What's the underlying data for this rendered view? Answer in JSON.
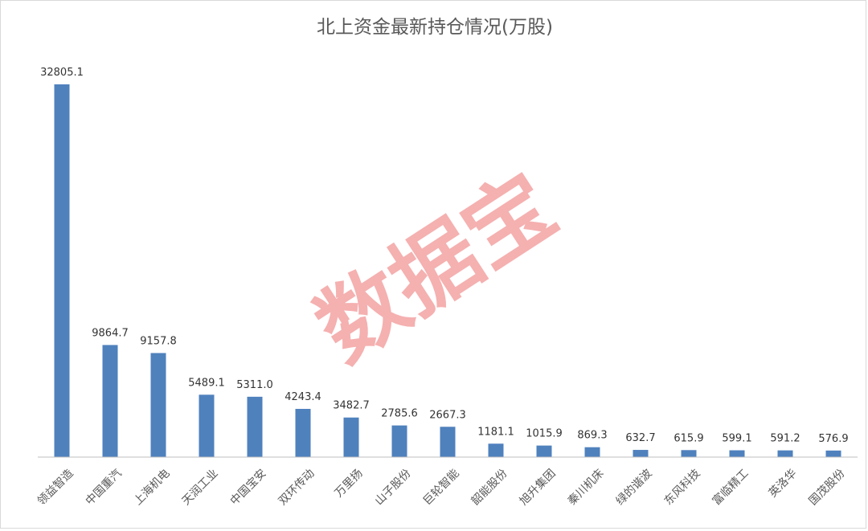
{
  "chart_data": {
    "type": "bar",
    "title": "北上资金最新持仓情况(万股)",
    "categories": [
      "领益智造",
      "中国重汽",
      "上海机电",
      "天润工业",
      "中国宝安",
      "双环传动",
      "万里扬",
      "山子股份",
      "巨轮智能",
      "韶能股份",
      "旭升集团",
      "秦川机床",
      "绿的谐波",
      "东风科技",
      "富临精工",
      "英洛华",
      "国茂股份"
    ],
    "values": [
      32805.1,
      9864.7,
      9157.8,
      5489.1,
      5311.0,
      4243.4,
      3482.7,
      2785.6,
      2667.3,
      1181.1,
      1015.9,
      869.3,
      632.7,
      615.9,
      599.1,
      591.2,
      576.9
    ],
    "data_labels": [
      "32805.1",
      "9864.7",
      "9157.8",
      "5489.1",
      "5311.0",
      "4243.4",
      "3482.7",
      "2785.6",
      "2667.3",
      "1181.1",
      "1015.9",
      "869.3",
      "632.7",
      "615.9",
      "599.1",
      "591.2",
      "576.9"
    ],
    "ylim": [
      0,
      32805.1
    ],
    "grid": false,
    "legend": "none",
    "bar_color": "#4f81bd",
    "watermark": "数据宝",
    "watermark_color": "#f4a3a3"
  }
}
